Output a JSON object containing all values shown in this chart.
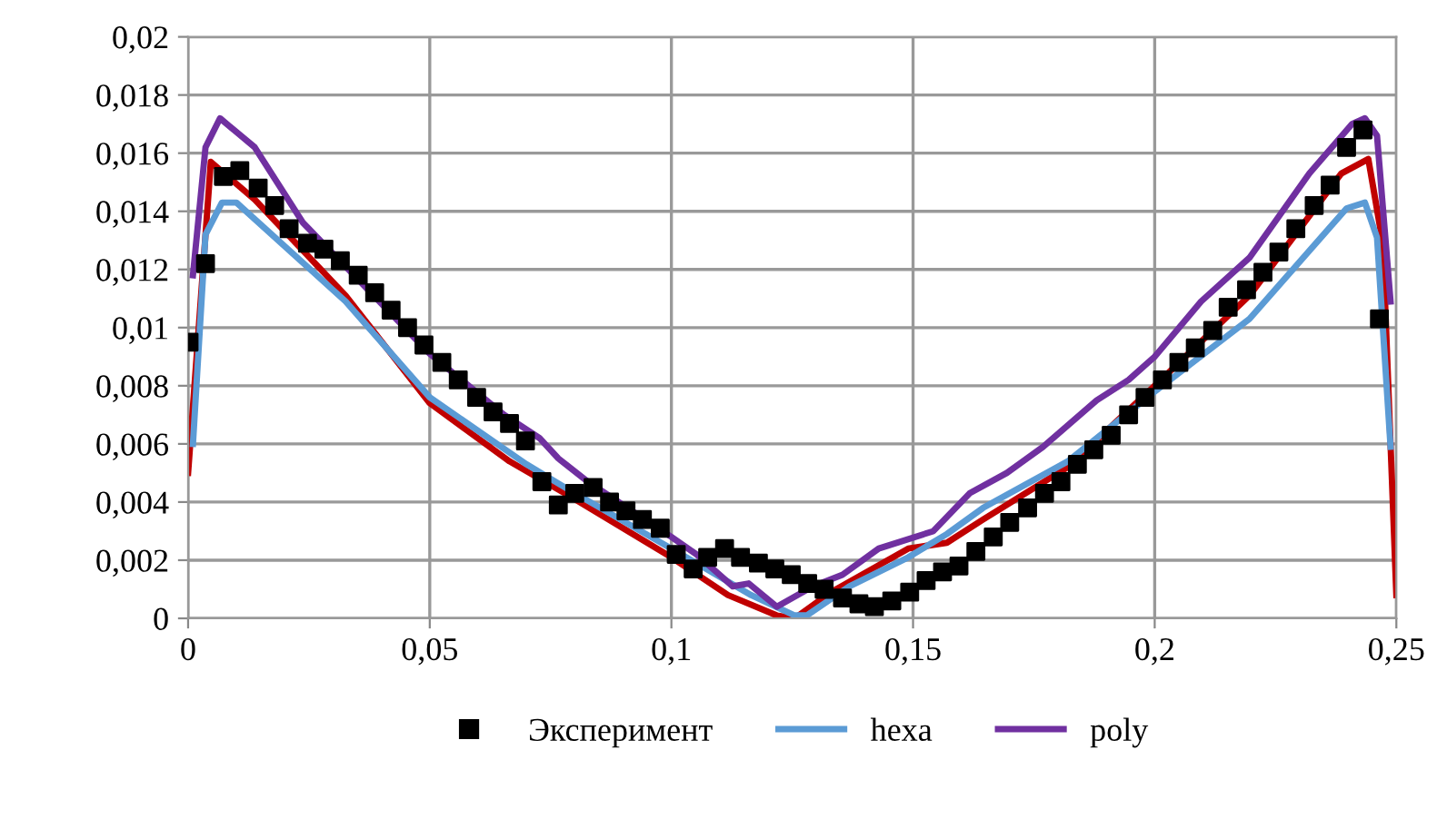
{
  "chart_data": {
    "type": "line",
    "xlim": [
      0,
      0.25
    ],
    "ylim": [
      0,
      0.02
    ],
    "xticks": [
      0,
      {
        "value": 0.05,
        "label": "0,05"
      },
      {
        "value": 0.1,
        "label": "0,1"
      },
      {
        "value": 0.15,
        "label": "0,15"
      },
      {
        "value": 0.2,
        "label": "0,2"
      },
      {
        "value": 0.25,
        "label": "0,25"
      }
    ],
    "yticks": [
      0,
      {
        "value": 0.002,
        "label": "0,002"
      },
      {
        "value": 0.004,
        "label": "0,004"
      },
      {
        "value": 0.006,
        "label": "0,006"
      },
      {
        "value": 0.008,
        "label": "0,008"
      },
      {
        "value": 0.01,
        "label": "0,01"
      },
      {
        "value": 0.012,
        "label": "0,012"
      },
      {
        "value": 0.014,
        "label": "0,014"
      },
      {
        "value": 0.016,
        "label": "0,016"
      },
      {
        "value": 0.018,
        "label": "0,018"
      },
      {
        "value": 0.02,
        "label": "0,02"
      }
    ],
    "grid": true,
    "legend": "bottom",
    "series": [
      {
        "name": "Эксперимент",
        "type": "scatter",
        "marker": "square",
        "color": "#000000",
        "x": [
          0.0002,
          0.0036,
          0.0073,
          0.0107,
          0.0145,
          0.0179,
          0.0209,
          0.0247,
          0.0281,
          0.0315,
          0.0352,
          0.0386,
          0.042,
          0.0454,
          0.0488,
          0.0525,
          0.0559,
          0.0597,
          0.0631,
          0.0665,
          0.0698,
          0.0732,
          0.0766,
          0.08,
          0.0838,
          0.0872,
          0.0906,
          0.094,
          0.0977,
          0.101,
          0.1045,
          0.1075,
          0.111,
          0.1143,
          0.118,
          0.1214,
          0.1248,
          0.1282,
          0.1316,
          0.1354,
          0.1388,
          0.142,
          0.1456,
          0.1493,
          0.1527,
          0.1561,
          0.1595,
          0.163,
          0.1666,
          0.17,
          0.1737,
          0.1772,
          0.1806,
          0.184,
          0.1874,
          0.191,
          0.1946,
          0.198,
          0.2016,
          0.205,
          0.2084,
          0.212,
          0.2152,
          0.219,
          0.2224,
          0.2257,
          0.2292,
          0.233,
          0.2363,
          0.2397,
          0.2431,
          0.2465
        ],
        "values": [
          0.0095,
          0.0122,
          0.0152,
          0.0154,
          0.0148,
          0.0142,
          0.0134,
          0.0129,
          0.0127,
          0.0123,
          0.0118,
          0.0112,
          0.0106,
          0.01,
          0.0094,
          0.0088,
          0.0082,
          0.0076,
          0.0071,
          0.0067,
          0.0061,
          0.0047,
          0.0039,
          0.0043,
          0.0045,
          0.004,
          0.0037,
          0.0034,
          0.0031,
          0.0022,
          0.0017,
          0.0021,
          0.0024,
          0.0021,
          0.0019,
          0.0017,
          0.0015,
          0.0012,
          0.001,
          0.0007,
          0.0005,
          0.0004,
          0.0006,
          0.0009,
          0.0013,
          0.0016,
          0.0018,
          0.0023,
          0.0028,
          0.0033,
          0.0038,
          0.0043,
          0.0047,
          0.0053,
          0.0058,
          0.0063,
          0.007,
          0.0076,
          0.0082,
          0.0088,
          0.0093,
          0.0099,
          0.0107,
          0.0113,
          0.0119,
          0.0126,
          0.0134,
          0.0142,
          0.0149,
          0.0162,
          0.0168,
          0.0103
        ]
      },
      {
        "color": "#c00000",
        "x": [
          0,
          0.0047,
          0.0138,
          0.0326,
          0.05,
          0.0665,
          0.079,
          0.1,
          0.1117,
          0.1218,
          0.1255,
          0.133,
          0.149,
          0.157,
          0.1645,
          0.182,
          0.2,
          0.2196,
          0.2386,
          0.2442,
          0.2472,
          0.25
        ],
        "values": [
          0.005,
          0.0157,
          0.0144,
          0.0111,
          0.0074,
          0.0054,
          0.0042,
          0.0021,
          0.0008,
          0.0001,
          0,
          0.0009,
          0.0024,
          0.0026,
          0.0034,
          0.0052,
          0.008,
          0.0111,
          0.0153,
          0.0158,
          0.0129,
          0.0008
        ]
      },
      {
        "name": "hexa",
        "color": "#5b9bd5",
        "x": [
          0.001,
          0.0036,
          0.007,
          0.01,
          0.0326,
          0.05,
          0.07,
          0.079,
          0.1,
          0.1165,
          0.1255,
          0.128,
          0.1368,
          0.149,
          0.157,
          0.1645,
          0.182,
          0.2,
          0.2196,
          0.2397,
          0.2435,
          0.246,
          0.2488
        ],
        "values": [
          0.006,
          0.0132,
          0.0143,
          0.0143,
          0.0109,
          0.0076,
          0.0053,
          0.0044,
          0.0024,
          0.0008,
          0.0001,
          0.0001,
          0.0011,
          0.0021,
          0.0029,
          0.0038,
          0.0054,
          0.0078,
          0.0103,
          0.0141,
          0.0143,
          0.0131,
          0.0059
        ]
      },
      {
        "name": "poly",
        "color": "#7030a0",
        "x": [
          0.001,
          0.0036,
          0.0066,
          0.0138,
          0.0238,
          0.0326,
          0.05,
          0.0654,
          0.0727,
          0.0766,
          0.0827,
          0.1,
          0.1052,
          0.1127,
          0.116,
          0.1218,
          0.1293,
          0.1354,
          0.1429,
          0.1542,
          0.1617,
          0.1694,
          0.1769,
          0.188,
          0.1946,
          0.2,
          0.2096,
          0.2196,
          0.232,
          0.2408,
          0.2435,
          0.246,
          0.2488
        ],
        "values": [
          0.0118,
          0.0162,
          0.0172,
          0.0162,
          0.0136,
          0.0121,
          0.0091,
          0.007,
          0.0062,
          0.0055,
          0.0047,
          0.0028,
          0.0022,
          0.0011,
          0.0012,
          0.0004,
          0.0011,
          0.0015,
          0.0024,
          0.003,
          0.0043,
          0.005,
          0.0059,
          0.0075,
          0.0082,
          0.009,
          0.0109,
          0.0124,
          0.0153,
          0.017,
          0.0172,
          0.0166,
          0.0109
        ]
      }
    ]
  }
}
